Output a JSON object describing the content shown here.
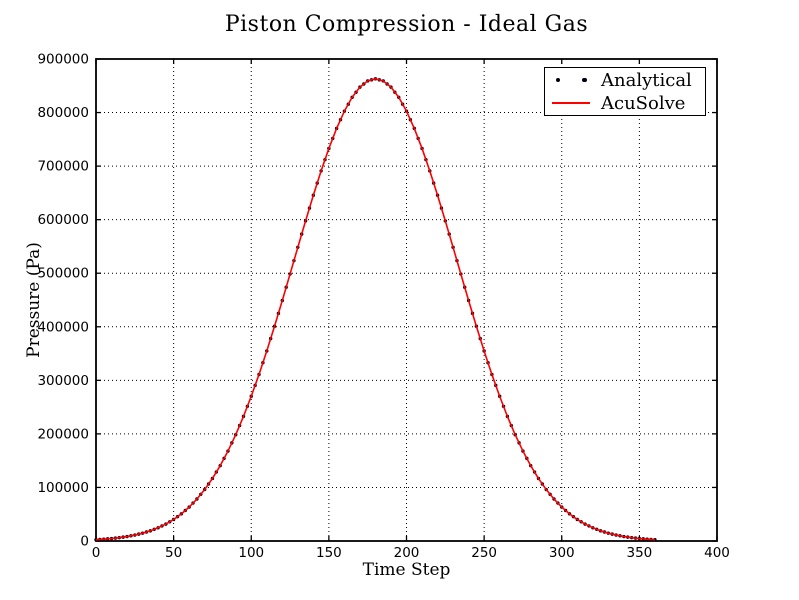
{
  "chart_data": {
    "type": "line",
    "title": "Piston Compression - Ideal Gas",
    "xlabel": "Time Step",
    "ylabel": "Pressure (Pa)",
    "xlim": [
      0,
      400
    ],
    "ylim": [
      0,
      900000
    ],
    "xticks": [
      0,
      50,
      100,
      150,
      200,
      250,
      300,
      350,
      400
    ],
    "yticks": [
      0,
      100000,
      200000,
      300000,
      400000,
      500000,
      600000,
      700000,
      800000,
      900000
    ],
    "grid": true,
    "grid_style": "dotted",
    "legend_position": "upper right",
    "x": [
      0,
      5,
      10,
      15,
      20,
      25,
      30,
      35,
      40,
      45,
      50,
      55,
      60,
      65,
      70,
      75,
      80,
      85,
      90,
      95,
      100,
      105,
      110,
      115,
      120,
      125,
      130,
      135,
      140,
      145,
      150,
      155,
      160,
      165,
      170,
      175,
      180,
      185,
      190,
      195,
      200,
      205,
      210,
      215,
      220,
      225,
      230,
      235,
      240,
      245,
      250,
      255,
      260,
      265,
      270,
      275,
      280,
      285,
      290,
      295,
      300,
      305,
      310,
      315,
      320,
      325,
      330,
      335,
      340,
      345,
      350,
      355,
      360
    ],
    "series": [
      {
        "name": "Analytical",
        "style": "dots",
        "color": "#000014",
        "values": [
          2400,
          3300,
          4600,
          6200,
          8300,
          11100,
          14600,
          19000,
          24700,
          31600,
          40200,
          50700,
          63300,
          78400,
          96100,
          116800,
          140700,
          167900,
          198500,
          232700,
          270300,
          311000,
          354800,
          401000,
          449100,
          498500,
          548400,
          597700,
          645600,
          691000,
          733000,
          770500,
          802600,
          828500,
          847500,
          859100,
          863000,
          859100,
          847500,
          828500,
          802600,
          770500,
          733000,
          691000,
          645600,
          597700,
          548400,
          498500,
          449100,
          401000,
          354800,
          311000,
          270300,
          232700,
          198500,
          167900,
          140700,
          116800,
          96100,
          78400,
          63300,
          50700,
          40200,
          31600,
          24700,
          19000,
          14600,
          11100,
          8300,
          6200,
          4600,
          3300,
          2400
        ]
      },
      {
        "name": "AcuSolve",
        "style": "line",
        "color": "#ff0000",
        "values": [
          2400,
          3300,
          4600,
          6200,
          8300,
          11100,
          14600,
          19000,
          24700,
          31600,
          40200,
          50700,
          63300,
          78400,
          96100,
          116800,
          140700,
          167900,
          198500,
          232700,
          270300,
          311000,
          354800,
          401000,
          449100,
          498500,
          548400,
          597700,
          645600,
          691000,
          733000,
          770500,
          802600,
          828500,
          847500,
          859100,
          863000,
          859100,
          847500,
          828500,
          802600,
          770500,
          733000,
          691000,
          645600,
          597700,
          548400,
          498500,
          449100,
          401000,
          354800,
          311000,
          270300,
          232700,
          198500,
          167900,
          140700,
          116800,
          96100,
          78400,
          63300,
          50700,
          40200,
          31600,
          24700,
          19000,
          14600,
          11100,
          8300,
          6200,
          4600,
          3300,
          2400
        ]
      }
    ],
    "frame_color": "#000000",
    "grid_color": "#000000",
    "tick_label_color": "#000000"
  }
}
